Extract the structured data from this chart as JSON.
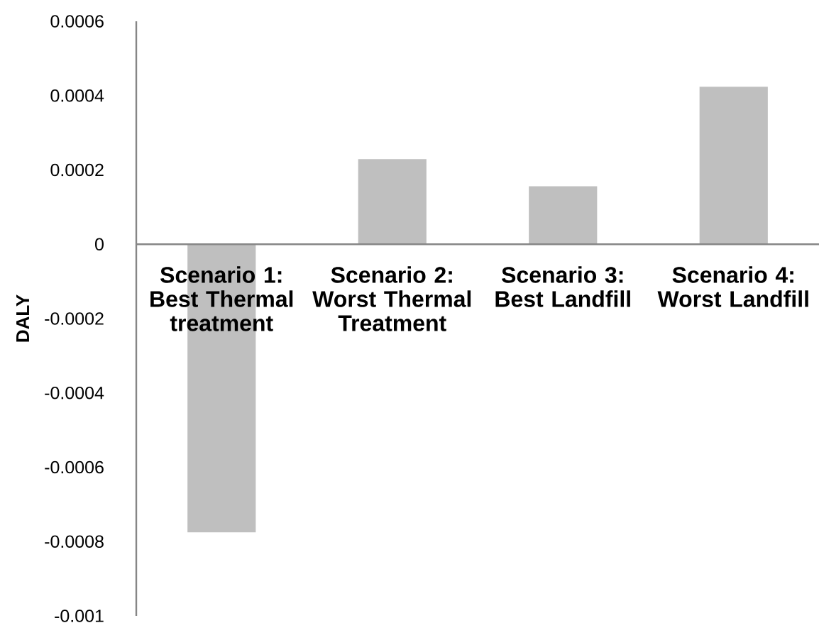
{
  "chart_data": {
    "type": "bar",
    "ylabel": "DALY",
    "categories": [
      "Scenario 1: Best Thermal treatment",
      "Scenario 2: Worst Thermal Treatment",
      "Scenario 3: Best Landfill",
      "Scenario 4: Worst Landfill"
    ],
    "values": [
      -0.000775,
      0.000229,
      0.000156,
      0.000424
    ],
    "color": "#bfbfbf",
    "ylim": [
      -0.001,
      0.0006
    ],
    "yticks": [
      -0.001,
      -0.0008,
      -0.0006,
      -0.0004,
      -0.0002,
      0,
      0.0002,
      0.0004,
      0.0006
    ]
  }
}
